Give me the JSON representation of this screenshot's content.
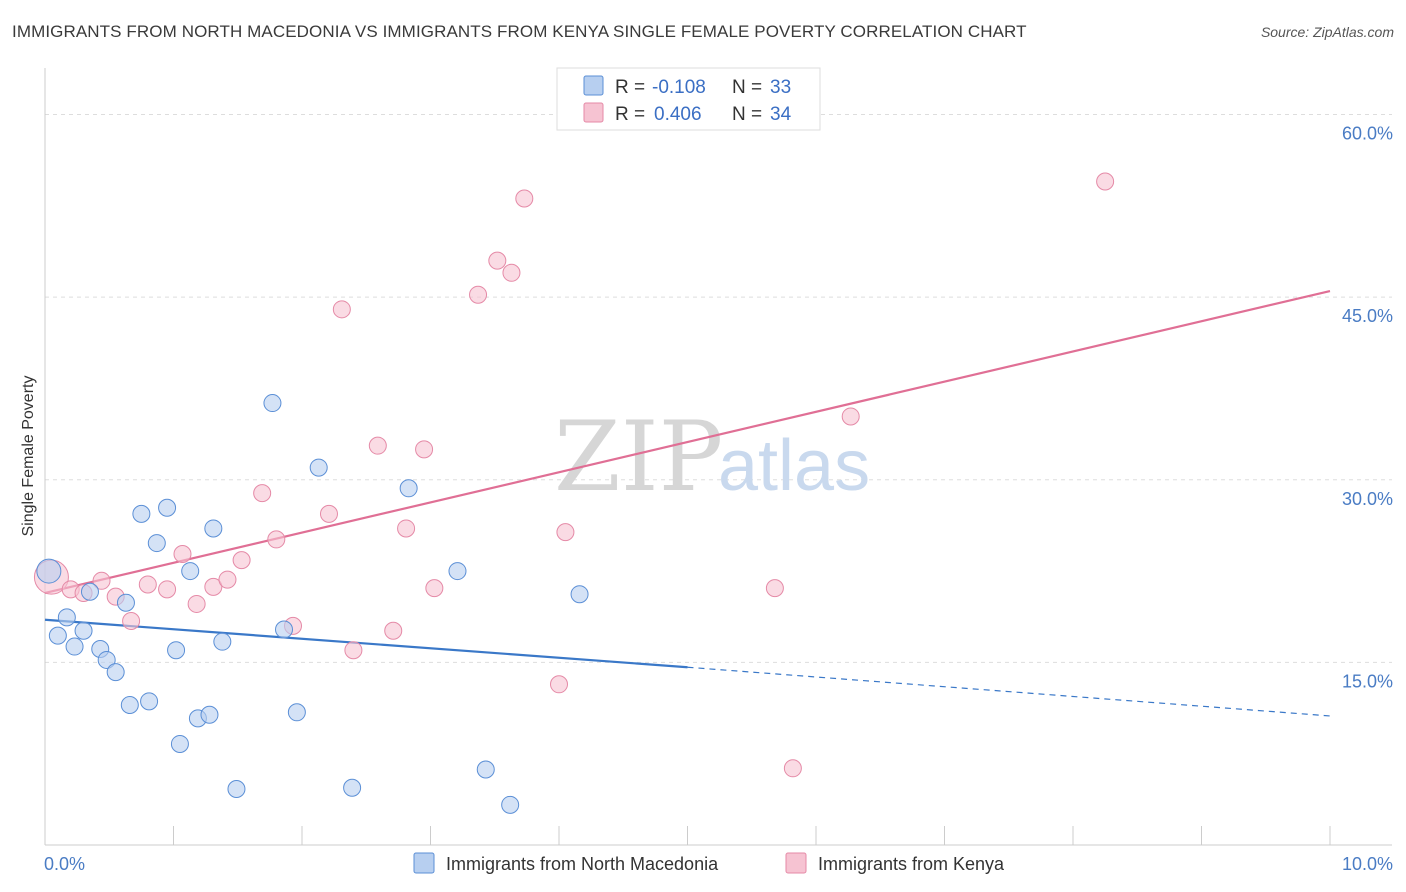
{
  "title": "IMMIGRANTS FROM NORTH MACEDONIA VS IMMIGRANTS FROM KENYA SINGLE FEMALE POVERTY CORRELATION CHART",
  "source": "Source: ZipAtlas.com",
  "watermark": {
    "zip": "ZIP",
    "atlas": "atlas"
  },
  "colors": {
    "blue_fill": "#b7cff0",
    "blue_stroke": "#5b8fd6",
    "blue_line": "#3a78c8",
    "pink_fill": "#f6c3d2",
    "pink_stroke": "#e58aa7",
    "pink_line": "#e06f95",
    "grid": "#dddddd",
    "tick_text": "#4a7cc4"
  },
  "legend_box": {
    "rows": [
      {
        "r_label": "R =",
        "r_value": "-0.108",
        "n_label": "N =",
        "n_value": "33"
      },
      {
        "r_label": "R =",
        "r_value": "0.406",
        "n_label": "N =",
        "n_value": "34"
      }
    ]
  },
  "chart_data": {
    "type": "scatter",
    "title": "IMMIGRANTS FROM NORTH MACEDONIA VS IMMIGRANTS FROM KENYA SINGLE FEMALE POVERTY CORRELATION CHART",
    "xlabel": "",
    "ylabel": "Single Female Poverty",
    "xlim": [
      0,
      10
    ],
    "ylim": [
      0,
      63
    ],
    "x_tick_labels": [
      "0.0%",
      "10.0%"
    ],
    "y_ticks": [
      15,
      30,
      45,
      60
    ],
    "y_tick_labels": [
      "15.0%",
      "30.0%",
      "45.0%",
      "60.0%"
    ],
    "grid": true,
    "legend_position": "top-center",
    "series": [
      {
        "name": "Immigrants from North Macedonia",
        "color": "#5b8fd6",
        "r": -0.108,
        "n": 33,
        "trend": {
          "x0": 0.0,
          "y0": 18.5,
          "x1": 5.0,
          "y1": 14.6,
          "dashed_to_x": 10.0,
          "dashed_to_y": 10.6
        },
        "points": [
          {
            "x": 0.03,
            "y": 22.5
          },
          {
            "x": 0.1,
            "y": 17.2
          },
          {
            "x": 0.17,
            "y": 18.7
          },
          {
            "x": 0.23,
            "y": 16.3
          },
          {
            "x": 0.3,
            "y": 17.6
          },
          {
            "x": 0.35,
            "y": 20.8
          },
          {
            "x": 0.43,
            "y": 16.1
          },
          {
            "x": 0.48,
            "y": 15.2
          },
          {
            "x": 0.55,
            "y": 14.2
          },
          {
            "x": 0.63,
            "y": 19.9
          },
          {
            "x": 0.66,
            "y": 11.5
          },
          {
            "x": 0.75,
            "y": 27.2
          },
          {
            "x": 0.81,
            "y": 11.8
          },
          {
            "x": 0.87,
            "y": 24.8
          },
          {
            "x": 0.95,
            "y": 27.7
          },
          {
            "x": 1.02,
            "y": 16.0
          },
          {
            "x": 1.05,
            "y": 8.3
          },
          {
            "x": 1.13,
            "y": 22.5
          },
          {
            "x": 1.19,
            "y": 10.4
          },
          {
            "x": 1.28,
            "y": 10.7
          },
          {
            "x": 1.31,
            "y": 26.0
          },
          {
            "x": 1.38,
            "y": 16.7
          },
          {
            "x": 1.49,
            "y": 4.6
          },
          {
            "x": 1.77,
            "y": 36.3
          },
          {
            "x": 1.86,
            "y": 17.7
          },
          {
            "x": 1.96,
            "y": 10.9
          },
          {
            "x": 2.13,
            "y": 31.0
          },
          {
            "x": 2.39,
            "y": 4.7
          },
          {
            "x": 2.83,
            "y": 29.3
          },
          {
            "x": 3.21,
            "y": 22.5
          },
          {
            "x": 3.43,
            "y": 6.2
          },
          {
            "x": 3.62,
            "y": 3.3
          },
          {
            "x": 4.16,
            "y": 20.6
          }
        ]
      },
      {
        "name": "Immigrants from Kenya",
        "color": "#e58aa7",
        "r": 0.406,
        "n": 34,
        "trend": {
          "x0": 0.0,
          "y0": 20.7,
          "x1": 10.0,
          "y1": 45.5
        },
        "points": [
          {
            "x": 0.05,
            "y": 22.0
          },
          {
            "x": 0.2,
            "y": 21.0
          },
          {
            "x": 0.3,
            "y": 20.7
          },
          {
            "x": 0.44,
            "y": 21.7
          },
          {
            "x": 0.55,
            "y": 20.4
          },
          {
            "x": 0.67,
            "y": 18.4
          },
          {
            "x": 0.8,
            "y": 21.4
          },
          {
            "x": 0.95,
            "y": 21.0
          },
          {
            "x": 1.07,
            "y": 23.9
          },
          {
            "x": 1.18,
            "y": 19.8
          },
          {
            "x": 1.31,
            "y": 21.2
          },
          {
            "x": 1.42,
            "y": 21.8
          },
          {
            "x": 1.53,
            "y": 23.4
          },
          {
            "x": 1.69,
            "y": 28.9
          },
          {
            "x": 1.8,
            "y": 25.1
          },
          {
            "x": 1.93,
            "y": 18.0
          },
          {
            "x": 2.21,
            "y": 27.2
          },
          {
            "x": 2.31,
            "y": 44.0
          },
          {
            "x": 2.4,
            "y": 16.0
          },
          {
            "x": 2.59,
            "y": 32.8
          },
          {
            "x": 2.71,
            "y": 17.6
          },
          {
            "x": 2.81,
            "y": 26.0
          },
          {
            "x": 2.95,
            "y": 32.5
          },
          {
            "x": 3.03,
            "y": 21.1
          },
          {
            "x": 3.37,
            "y": 45.2
          },
          {
            "x": 3.52,
            "y": 48.0
          },
          {
            "x": 3.63,
            "y": 47.0
          },
          {
            "x": 3.73,
            "y": 53.1
          },
          {
            "x": 4.0,
            "y": 13.2
          },
          {
            "x": 4.05,
            "y": 25.7
          },
          {
            "x": 5.68,
            "y": 21.1
          },
          {
            "x": 5.82,
            "y": 6.3
          },
          {
            "x": 6.27,
            "y": 35.2
          },
          {
            "x": 8.25,
            "y": 54.5
          }
        ]
      }
    ]
  }
}
